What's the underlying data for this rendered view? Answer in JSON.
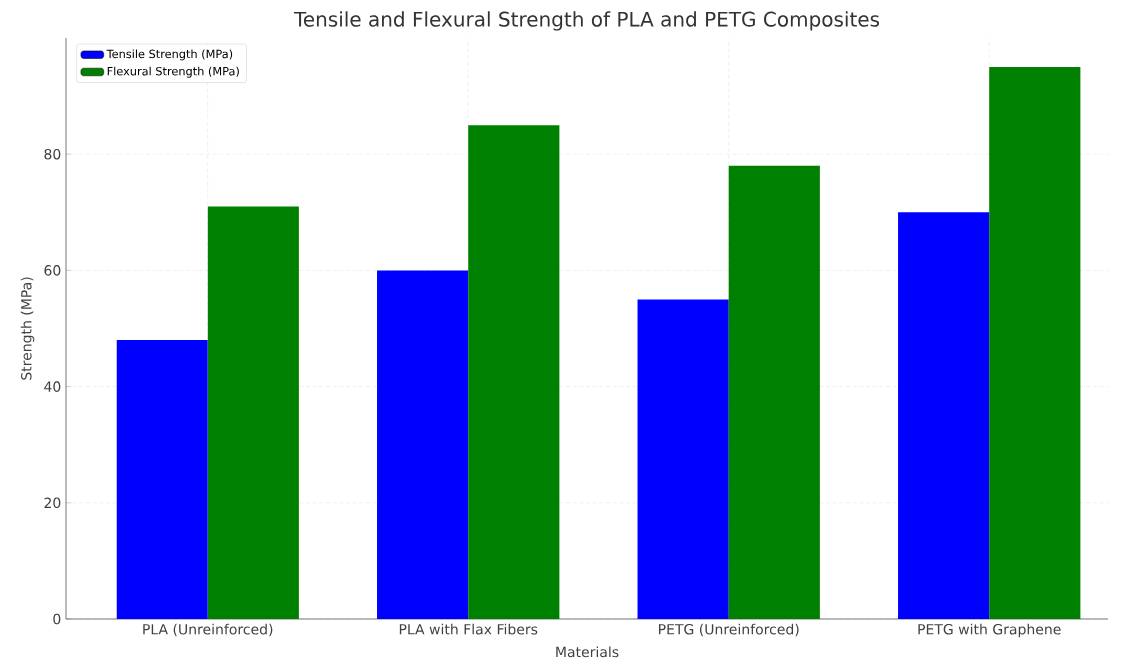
{
  "chart_data": {
    "type": "bar",
    "title": "Tensile and Flexural Strength of PLA and PETG Composites",
    "xlabel": "Materials",
    "ylabel": "Strength (MPa)",
    "categories": [
      "PLA (Unreinforced)",
      "PLA with Flax Fibers",
      "PETG (Unreinforced)",
      "PETG with Graphene"
    ],
    "series": [
      {
        "name": "Tensile Strength (MPa)",
        "color": "#0000ff",
        "values": [
          48,
          60,
          55,
          70
        ]
      },
      {
        "name": "Flexural Strength (MPa)",
        "color": "#008000",
        "values": [
          71,
          85,
          78,
          95
        ]
      }
    ],
    "ylim": [
      0,
      100
    ],
    "yticks": [
      0,
      20,
      40,
      60,
      80
    ],
    "grid": true,
    "legend": "top left"
  }
}
